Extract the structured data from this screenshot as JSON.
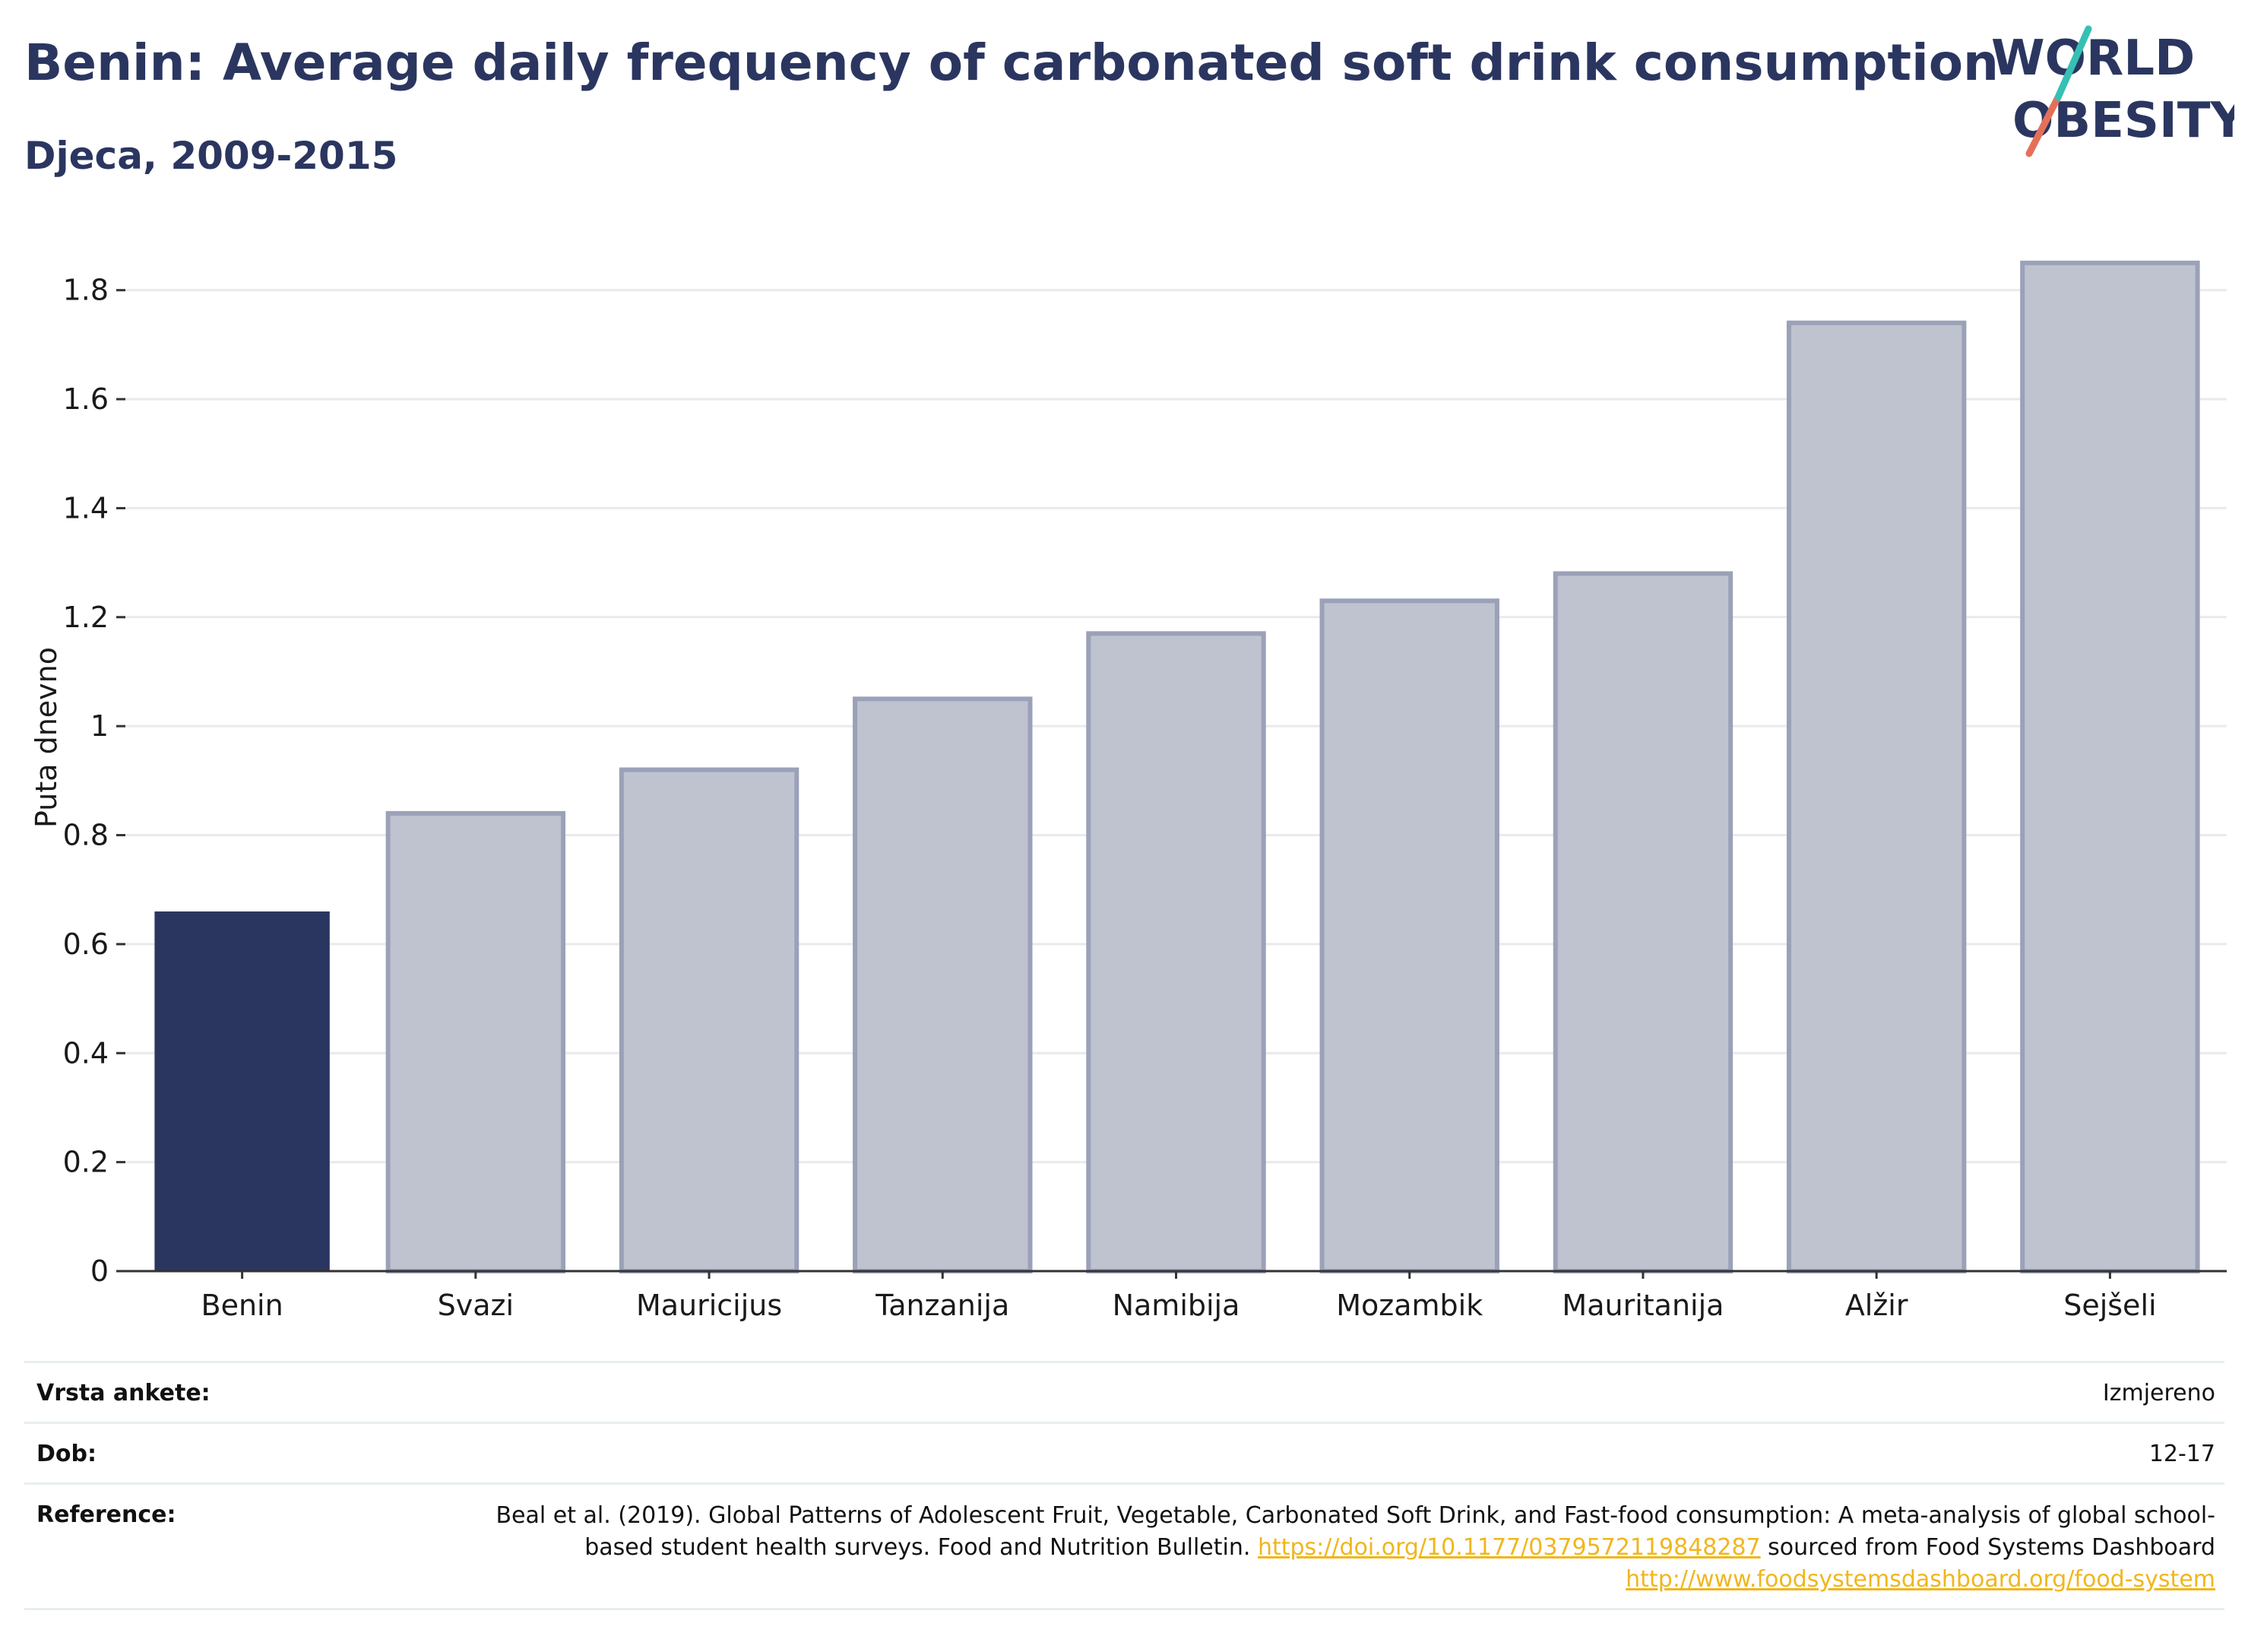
{
  "title": "Benin: Average daily frequency of carbonated soft drink consumption",
  "subtitle": "Djeca, 2009-2015",
  "logo": {
    "line1": "WORLD",
    "line2": "OBESITY"
  },
  "colors": {
    "highlight": "#2b3660",
    "bar": "#bfc3cf",
    "bar_border": "#9aa1b8",
    "grid": "#e8eaee",
    "link": "#f0b61c"
  },
  "chart_data": {
    "type": "bar",
    "categories": [
      "Benin",
      "Svazi",
      "Mauricijus",
      "Tanzanija",
      "Namibija",
      "Mozambik",
      "Mauritanija",
      "Alžir",
      "Sejšeli"
    ],
    "values": [
      0.66,
      0.84,
      0.92,
      1.05,
      1.17,
      1.23,
      1.28,
      1.74,
      1.85
    ],
    "highlight": "Benin",
    "ylabel": "Puta dnevno",
    "ylim": [
      0,
      1.9
    ],
    "yticks": [
      "0",
      "0.2",
      "0.4",
      "0.6",
      "0.8",
      "1",
      "1.2",
      "1.4",
      "1.6",
      "1.8"
    ],
    "grid": true
  },
  "meta": {
    "survey_label": "Vrsta ankete:",
    "survey_value": "Izmjereno",
    "age_label": "Dob:",
    "age_value": "12-17",
    "ref_label": "Reference:",
    "ref_text1": "Beal et al. (2019). Global Patterns of Adolescent Fruit, Vegetable, Carbonated Soft Drink, and Fast-food consumption: A meta-analysis of global school-based student health surveys. Food and Nutrition Bulletin.",
    "ref_link1": "https://doi.org/10.1177/0379572119848287",
    "ref_text2": "sourced from Food Systems Dashboard",
    "ref_link2": "http://www.foodsystemsdashboard.org/food-system"
  }
}
